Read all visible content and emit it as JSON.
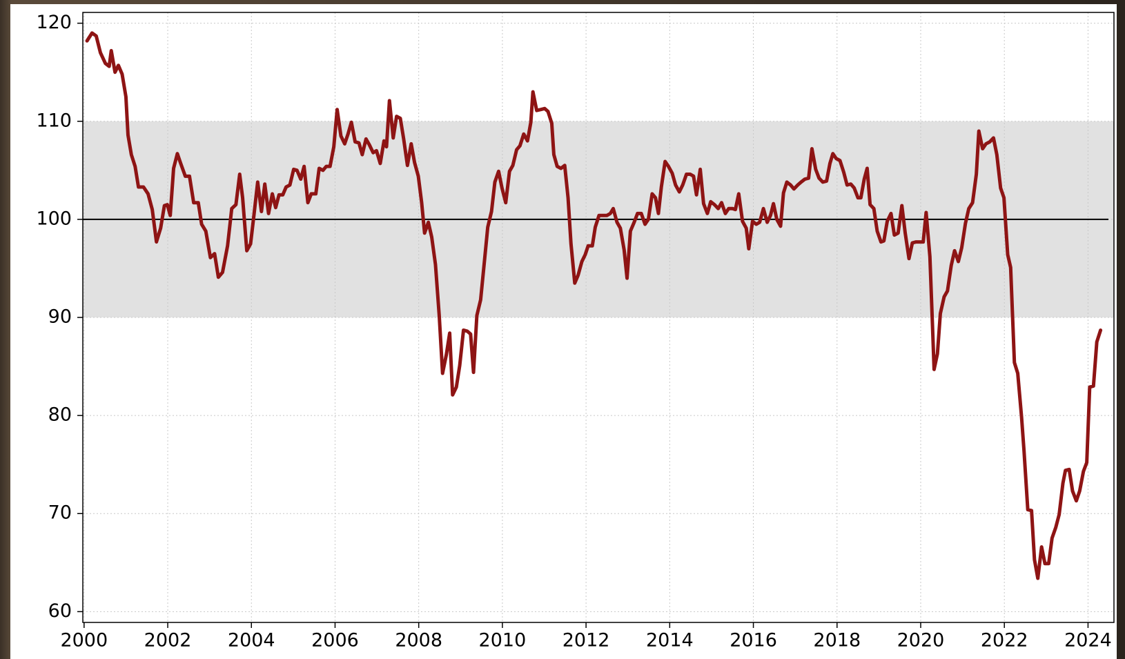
{
  "chart_data": {
    "type": "line",
    "color": "#8e1414",
    "band": [
      90,
      110
    ],
    "band_color": "#e1e1e1",
    "reference_line": 100,
    "grid": true,
    "xlim": [
      1999.97,
      2024.62
    ],
    "ylim": [
      58.9,
      121.1
    ],
    "xticks": [
      2000,
      2002,
      2004,
      2006,
      2008,
      2010,
      2012,
      2014,
      2016,
      2018,
      2020,
      2022,
      2024
    ],
    "yticks": [
      60,
      70,
      80,
      90,
      100,
      110,
      120
    ],
    "x": [
      2000.07,
      2000.19,
      2000.29,
      2000.39,
      2000.51,
      2000.6,
      2000.65,
      2000.74,
      2000.82,
      2000.91,
      2001.0,
      2001.05,
      2001.13,
      2001.22,
      2001.3,
      2001.42,
      2001.53,
      2001.63,
      2001.73,
      2001.83,
      2001.92,
      2001.99,
      2002.06,
      2002.14,
      2002.23,
      2002.31,
      2002.42,
      2002.52,
      2002.62,
      2002.73,
      2002.81,
      2002.91,
      2003.02,
      2003.12,
      2003.21,
      2003.31,
      2003.43,
      2003.53,
      2003.63,
      2003.72,
      2003.79,
      2003.89,
      2003.98,
      2004.06,
      2004.15,
      2004.24,
      2004.32,
      2004.41,
      2004.5,
      2004.58,
      2004.66,
      2004.75,
      2004.83,
      2004.92,
      2005.01,
      2005.09,
      2005.18,
      2005.26,
      2005.35,
      2005.43,
      2005.54,
      2005.62,
      2005.71,
      2005.79,
      2005.88,
      2005.97,
      2006.05,
      2006.14,
      2006.23,
      2006.31,
      2006.39,
      2006.48,
      2006.57,
      2006.65,
      2006.74,
      2006.82,
      2006.91,
      2006.99,
      2007.08,
      2007.17,
      2007.23,
      2007.3,
      2007.39,
      2007.47,
      2007.56,
      2007.64,
      2007.73,
      2007.82,
      2007.9,
      2007.99,
      2008.07,
      2008.14,
      2008.23,
      2008.31,
      2008.4,
      2008.49,
      2008.57,
      2008.66,
      2008.74,
      2008.81,
      2008.9,
      2008.98,
      2009.07,
      2009.16,
      2009.24,
      2009.31,
      2009.39,
      2009.48,
      2009.57,
      2009.65,
      2009.74,
      2009.82,
      2009.91,
      2009.99,
      2010.08,
      2010.17,
      2010.25,
      2010.34,
      2010.42,
      2010.51,
      2010.6,
      2010.68,
      2010.73,
      2010.82,
      2010.92,
      2011.01,
      2011.09,
      2011.18,
      2011.23,
      2011.31,
      2011.4,
      2011.49,
      2011.57,
      2011.64,
      2011.73,
      2011.81,
      2011.9,
      2011.98,
      2012.05,
      2012.15,
      2012.22,
      2012.31,
      2012.39,
      2012.5,
      2012.58,
      2012.65,
      2012.74,
      2012.82,
      2012.91,
      2012.98,
      2013.06,
      2013.15,
      2013.23,
      2013.32,
      2013.41,
      2013.49,
      2013.58,
      2013.66,
      2013.73,
      2013.8,
      2013.89,
      2013.97,
      2014.06,
      2014.14,
      2014.23,
      2014.31,
      2014.4,
      2014.49,
      2014.57,
      2014.64,
      2014.73,
      2014.81,
      2014.9,
      2014.98,
      2015.07,
      2015.16,
      2015.24,
      2015.33,
      2015.41,
      2015.5,
      2015.57,
      2015.65,
      2015.74,
      2015.83,
      2015.89,
      2015.98,
      2016.07,
      2016.15,
      2016.24,
      2016.33,
      2016.41,
      2016.48,
      2016.56,
      2016.65,
      2016.72,
      2016.8,
      2016.89,
      2016.97,
      2017.06,
      2017.14,
      2017.23,
      2017.32,
      2017.4,
      2017.49,
      2017.57,
      2017.66,
      2017.75,
      2017.83,
      2017.9,
      2017.98,
      2018.07,
      2018.16,
      2018.24,
      2018.33,
      2018.41,
      2018.5,
      2018.57,
      2018.65,
      2018.72,
      2018.79,
      2018.88,
      2018.96,
      2019.05,
      2019.12,
      2019.2,
      2019.29,
      2019.37,
      2019.46,
      2019.55,
      2019.63,
      2019.72,
      2019.8,
      2019.89,
      2019.97,
      2020.06,
      2020.13,
      2020.22,
      2020.28,
      2020.32,
      2020.4,
      2020.47,
      2020.56,
      2020.64,
      2020.73,
      2020.81,
      2020.9,
      2020.98,
      2021.07,
      2021.15,
      2021.24,
      2021.33,
      2021.39,
      2021.48,
      2021.56,
      2021.65,
      2021.74,
      2021.82,
      2021.91,
      2021.99,
      2022.08,
      2022.15,
      2022.24,
      2022.32,
      2022.41,
      2022.47,
      2022.56,
      2022.65,
      2022.72,
      2022.8,
      2022.89,
      2022.97,
      2023.06,
      2023.14,
      2023.23,
      2023.31,
      2023.4,
      2023.46,
      2023.55,
      2023.63,
      2023.72,
      2023.8,
      2023.89,
      2023.97,
      2024.04,
      2024.13,
      2024.21,
      2024.3
    ],
    "values": [
      118.2,
      119,
      118.7,
      117,
      115.9,
      115.6,
      117.2,
      115,
      115.7,
      114.8,
      112.5,
      108.6,
      106.6,
      105.4,
      103.3,
      103.3,
      102.6,
      101,
      97.7,
      99.1,
      101.4,
      101.5,
      100.4,
      105.2,
      106.7,
      105.7,
      104.4,
      104.4,
      101.7,
      101.7,
      99.5,
      98.8,
      96.1,
      96.5,
      94.1,
      94.6,
      97.3,
      101.1,
      101.5,
      104.6,
      102.2,
      96.8,
      97.5,
      100.4,
      103.8,
      100.8,
      103.6,
      100.6,
      102.6,
      101.2,
      102.5,
      102.5,
      103.3,
      103.5,
      105.1,
      105,
      104.1,
      105.4,
      101.7,
      102.6,
      102.6,
      105.2,
      105,
      105.4,
      105.4,
      107.4,
      111.2,
      108.5,
      107.7,
      108.7,
      109.9,
      107.9,
      107.8,
      106.6,
      108.2,
      107.6,
      106.8,
      107,
      105.7,
      108,
      107.4,
      112.1,
      108.3,
      110.5,
      110.3,
      108.2,
      105.5,
      107.7,
      105.8,
      104.4,
      101.7,
      98.6,
      99.7,
      98.2,
      95.4,
      90.2,
      84.3,
      86.2,
      88.4,
      82.1,
      82.9,
      85.1,
      88.7,
      88.6,
      88.3,
      84.4,
      90.2,
      91.8,
      95.7,
      99.2,
      100.8,
      103.8,
      104.9,
      103.2,
      101.7,
      104.9,
      105.5,
      107.1,
      107.5,
      108.7,
      108,
      109.9,
      113,
      111.1,
      111.2,
      111.3,
      111,
      109.8,
      106.6,
      105.4,
      105.2,
      105.5,
      102.2,
      97.5,
      93.5,
      94.3,
      95.7,
      96.4,
      97.3,
      97.3,
      99.2,
      100.4,
      100.4,
      100.4,
      100.6,
      101.1,
      99.7,
      99.1,
      96.9,
      94,
      98.8,
      99.7,
      100.6,
      100.6,
      99.5,
      100,
      102.6,
      102.2,
      100.6,
      103.3,
      105.9,
      105.4,
      104.7,
      103.5,
      102.8,
      103.5,
      104.6,
      104.6,
      104.4,
      102.5,
      105.1,
      101.6,
      100.6,
      101.8,
      101.5,
      101.1,
      101.7,
      100.6,
      101.1,
      101.1,
      101,
      102.6,
      99.8,
      99.1,
      97,
      99.8,
      99.5,
      99.7,
      101.1,
      99.7,
      100.4,
      101.6,
      100,
      99.3,
      102.7,
      103.8,
      103.5,
      103.1,
      103.5,
      103.8,
      104.1,
      104.2,
      107.2,
      105.1,
      104.2,
      103.8,
      103.9,
      105.7,
      106.7,
      106.2,
      106,
      104.8,
      103.5,
      103.6,
      103.2,
      102.2,
      102.2,
      104.1,
      105.2,
      101.5,
      101.1,
      98.8,
      97.7,
      97.8,
      99.8,
      100.6,
      98.4,
      98.6,
      101.4,
      98.6,
      96,
      97.6,
      97.7,
      97.7,
      97.7,
      100.7,
      96.2,
      89.4,
      84.7,
      86.3,
      90.4,
      92.1,
      92.7,
      95.3,
      96.8,
      95.7,
      97.1,
      99.6,
      101.1,
      101.7,
      104.6,
      109,
      107.2,
      107.7,
      107.9,
      108.3,
      106.6,
      103.2,
      102.2,
      96.4,
      95.1,
      85.4,
      84.3,
      79.9,
      76.4,
      70.4,
      70.3,
      65.3,
      63.4,
      66.6,
      64.9,
      64.9,
      67.5,
      68.6,
      69.9,
      73.1,
      74.4,
      74.5,
      72.3,
      71.3,
      72.3,
      74.3,
      75.2,
      82.9,
      83,
      87.5,
      88.7
    ]
  }
}
